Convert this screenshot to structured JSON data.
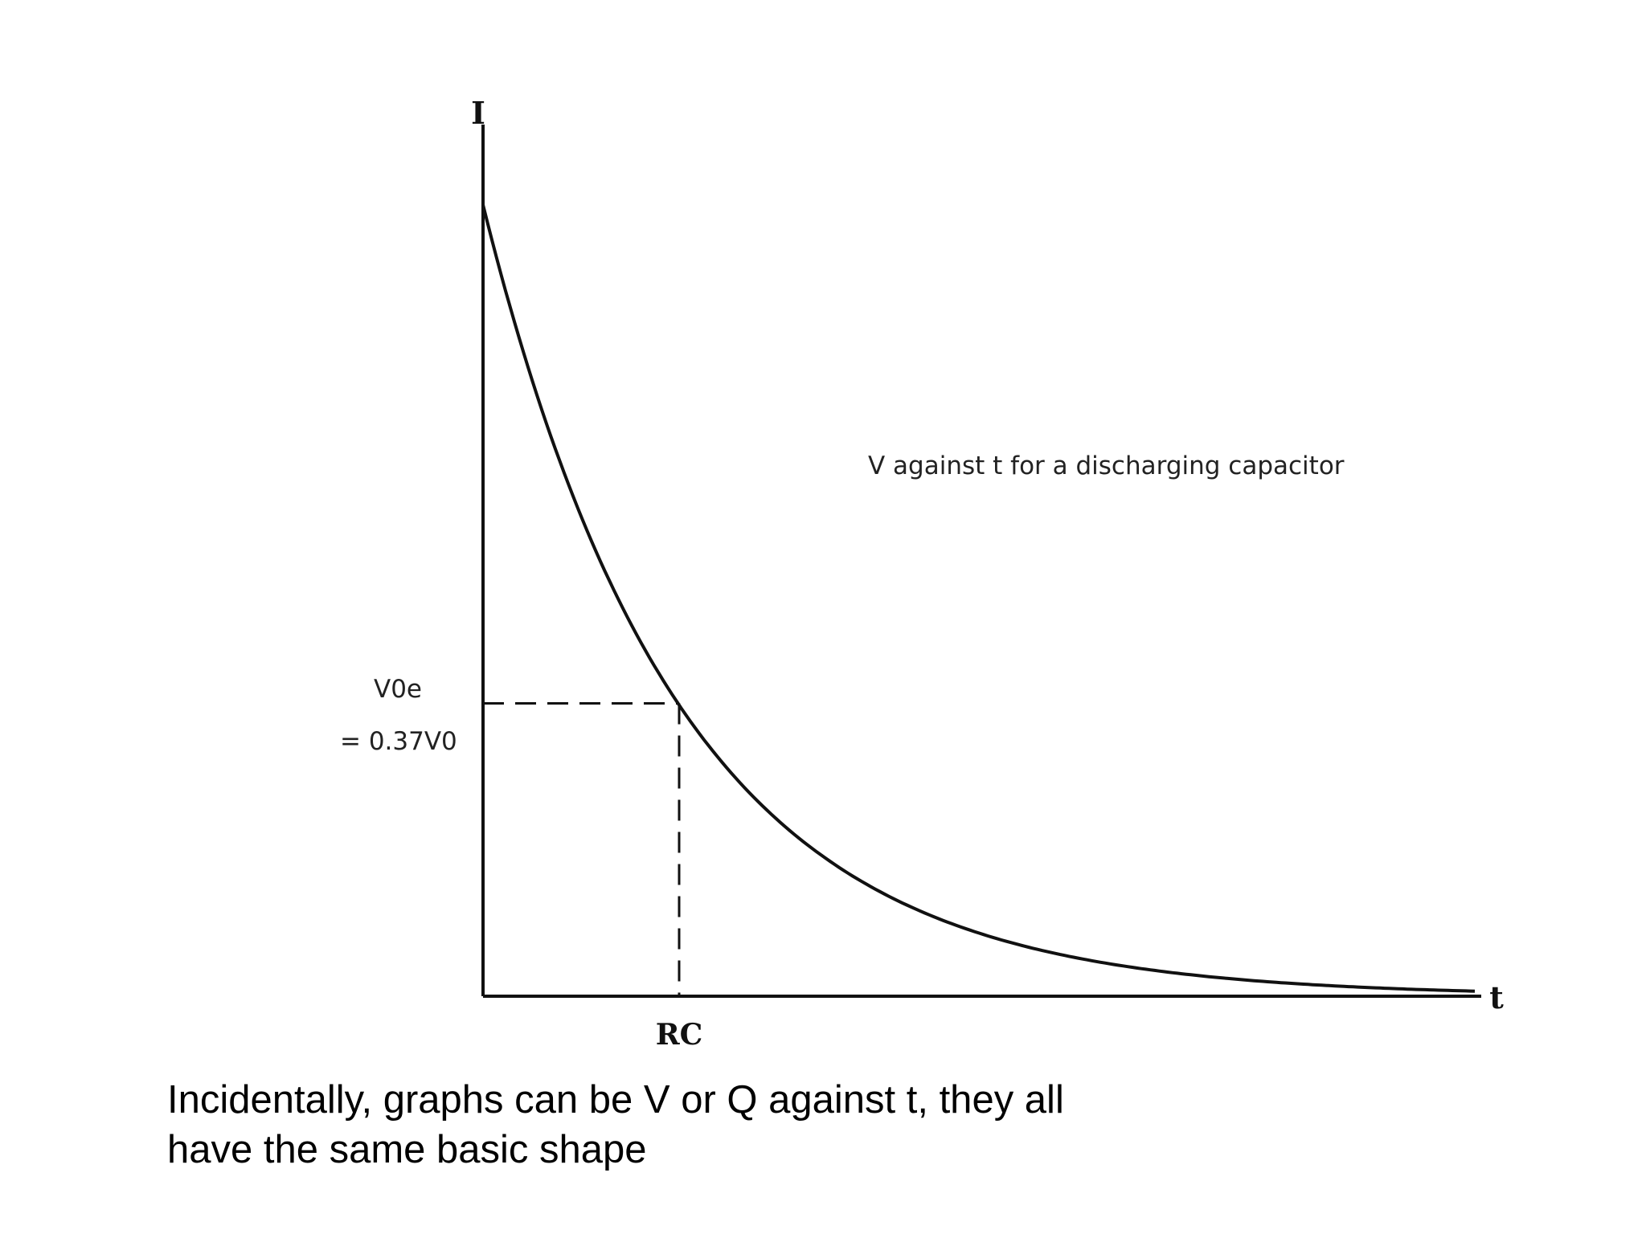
{
  "chart_data": {
    "type": "line",
    "title": "V against t for a discharging capacitor",
    "xlabel": "t",
    "ylabel": "I",
    "x_tick_labels": [
      "RC"
    ],
    "annotation": {
      "line1": "V0e",
      "line2": "= 0.37V0"
    },
    "curve": "exponential decay",
    "series": [
      {
        "x": [
          0,
          0.25,
          0.5,
          0.75,
          1,
          1.5,
          2,
          2.5,
          3,
          3.5,
          4,
          4.5,
          5
        ],
        "y": [
          1,
          0.779,
          0.607,
          0.472,
          0.368,
          0.223,
          0.135,
          0.082,
          0.05,
          0.03,
          0.018,
          0.011,
          0.007
        ]
      }
    ],
    "marker_point": {
      "x": 1,
      "y": 0.37
    },
    "xlim": [
      0,
      5
    ],
    "ylim": [
      0,
      1
    ],
    "grid": false
  },
  "caption": {
    "line1": "Incidentally, graphs can be V or Q against t, they all",
    "line2": "have the same basic shape"
  }
}
